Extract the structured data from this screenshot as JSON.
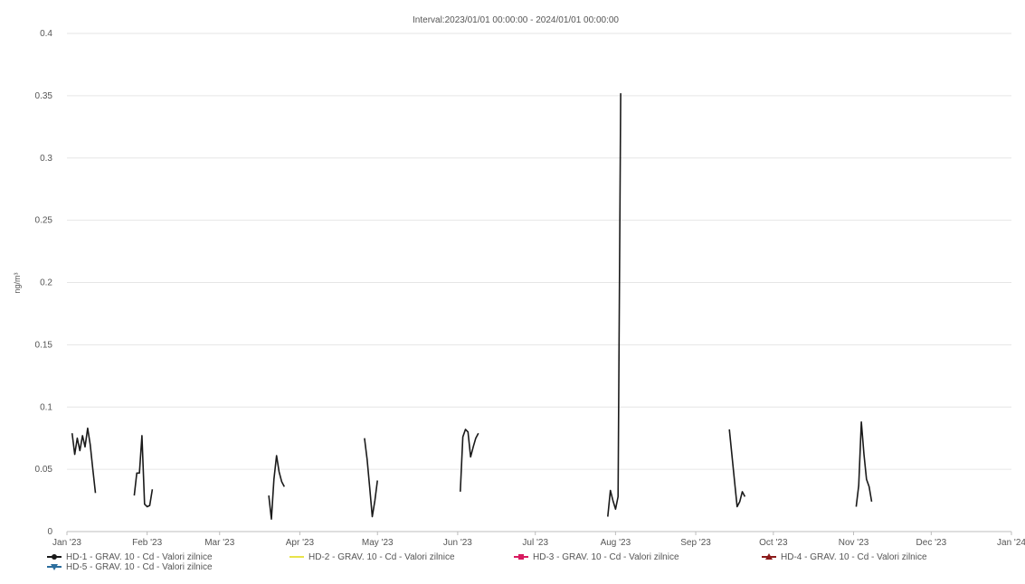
{
  "chart_data": {
    "type": "line",
    "title": "Interval:2023/01/01 00:00:00 - 2024/01/01 00:00:00",
    "ylabel": "ng/m³",
    "xlabel": "",
    "ylim": [
      0,
      0.4
    ],
    "yticks": [
      0,
      0.05,
      0.1,
      0.15,
      0.2,
      0.25,
      0.3,
      0.35,
      0.4
    ],
    "ytick_labels": [
      "0",
      "0.05",
      "0.1",
      "0.15",
      "0.2",
      "0.25",
      "0.3",
      "0.35",
      "0.4"
    ],
    "xlim": [
      "2023-01-01",
      "2024-01-01"
    ],
    "xticks": [
      "2023-01-01",
      "2023-02-01",
      "2023-03-01",
      "2023-04-01",
      "2023-05-01",
      "2023-06-01",
      "2023-07-01",
      "2023-08-01",
      "2023-09-01",
      "2023-10-01",
      "2023-11-01",
      "2023-12-01",
      "2024-01-01"
    ],
    "xtick_labels": [
      "Jan '23",
      "Feb '23",
      "Mar '23",
      "Apr '23",
      "May '23",
      "Jun '23",
      "Jul '23",
      "Aug '23",
      "Sep '23",
      "Oct '23",
      "Nov '23",
      "Dec '23",
      "Jan '24"
    ],
    "grid": true,
    "legend_position": "bottom",
    "series": [
      {
        "name": "HD-1 - GRAV. 10 - Cd - Valori zilnice",
        "color": "#1a1a1a",
        "marker": "circle",
        "segments": [
          {
            "x": [
              "2023-01-03",
              "2023-01-04",
              "2023-01-05",
              "2023-01-06",
              "2023-01-07",
              "2023-01-08",
              "2023-01-09",
              "2023-01-10",
              "2023-01-11",
              "2023-01-12"
            ],
            "y": [
              0.079,
              0.062,
              0.075,
              0.065,
              0.077,
              0.068,
              0.083,
              0.07,
              0.05,
              0.031
            ]
          },
          {
            "x": [
              "2023-01-27",
              "2023-01-28",
              "2023-01-29",
              "2023-01-30",
              "2023-01-31",
              "2023-02-01",
              "2023-02-02",
              "2023-02-03"
            ],
            "y": [
              0.029,
              0.047,
              0.047,
              0.077,
              0.022,
              0.02,
              0.021,
              0.034
            ]
          },
          {
            "x": [
              "2023-03-20",
              "2023-03-21",
              "2023-03-22",
              "2023-03-23",
              "2023-03-24",
              "2023-03-25",
              "2023-03-26"
            ],
            "y": [
              0.029,
              0.01,
              0.042,
              0.061,
              0.048,
              0.04,
              0.036
            ]
          },
          {
            "x": [
              "2023-04-26",
              "2023-04-27",
              "2023-04-28",
              "2023-04-29",
              "2023-04-30",
              "2023-05-01"
            ],
            "y": [
              0.075,
              0.058,
              0.035,
              0.012,
              0.025,
              0.041
            ]
          },
          {
            "x": [
              "2023-06-02",
              "2023-06-03",
              "2023-06-04",
              "2023-06-05",
              "2023-06-06",
              "2023-06-07",
              "2023-06-08",
              "2023-06-09"
            ],
            "y": [
              0.032,
              0.076,
              0.082,
              0.08,
              0.06,
              0.068,
              0.075,
              0.079
            ]
          },
          {
            "x": [
              "2023-07-29",
              "2023-07-30",
              "2023-07-31",
              "2023-08-01",
              "2023-08-02",
              "2023-08-03"
            ],
            "y": [
              0.012,
              0.033,
              0.025,
              0.018,
              0.028,
              0.352
            ]
          },
          {
            "x": [
              "2023-09-14",
              "2023-09-15",
              "2023-09-16",
              "2023-09-17",
              "2023-09-18",
              "2023-09-19",
              "2023-09-20"
            ],
            "y": [
              0.082,
              0.061,
              0.04,
              0.02,
              0.024,
              0.032,
              0.028
            ]
          },
          {
            "x": [
              "2023-11-02",
              "2023-11-03",
              "2023-11-04",
              "2023-11-05",
              "2023-11-06",
              "2023-11-07",
              "2023-11-08"
            ],
            "y": [
              0.02,
              0.037,
              0.088,
              0.062,
              0.042,
              0.036,
              0.024
            ]
          }
        ]
      },
      {
        "name": "HD-2 - GRAV. 10 - Cd - Valori zilnice",
        "color": "#e8e34a",
        "marker": "line",
        "segments": []
      },
      {
        "name": "HD-3 - GRAV. 10 - Cd - Valori zilnice",
        "color": "#d81b60",
        "marker": "square",
        "segments": []
      },
      {
        "name": "HD-4 - GRAV. 10 - Cd - Valori zilnice",
        "color": "#8b1a1a",
        "marker": "triangle",
        "segments": []
      },
      {
        "name": "HD-5 - GRAV. 10 - Cd - Valori zilnice",
        "color": "#2c6e9e",
        "marker": "triangle-down",
        "segments": []
      }
    ]
  }
}
